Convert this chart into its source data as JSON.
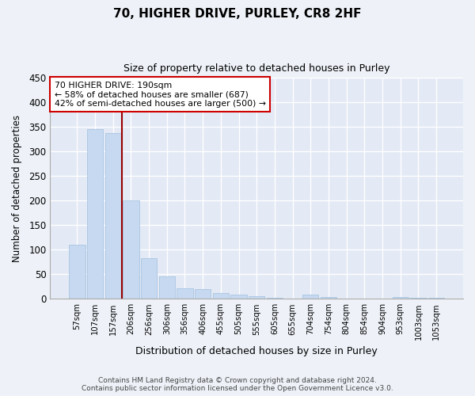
{
  "title_line1": "70, HIGHER DRIVE, PURLEY, CR8 2HF",
  "title_line2": "Size of property relative to detached houses in Purley",
  "xlabel": "Distribution of detached houses by size in Purley",
  "ylabel": "Number of detached properties",
  "categories": [
    "57sqm",
    "107sqm",
    "157sqm",
    "206sqm",
    "256sqm",
    "306sqm",
    "356sqm",
    "406sqm",
    "455sqm",
    "505sqm",
    "555sqm",
    "605sqm",
    "655sqm",
    "704sqm",
    "754sqm",
    "804sqm",
    "854sqm",
    "904sqm",
    "953sqm",
    "1003sqm",
    "1053sqm"
  ],
  "values": [
    110,
    345,
    338,
    200,
    83,
    46,
    22,
    20,
    11,
    8,
    6,
    2,
    0,
    8,
    4,
    0,
    0,
    0,
    3,
    2,
    2
  ],
  "bar_color": "#c6d9f0",
  "bar_edge_color": "#9fbfdf",
  "vline_x": 2.5,
  "vline_color": "#990000",
  "annotation_text": "70 HIGHER DRIVE: 190sqm\n← 58% of detached houses are smaller (687)\n42% of semi-detached houses are larger (500) →",
  "annotation_box_color": "#ffffff",
  "annotation_box_edge": "#cc0000",
  "ylim": [
    0,
    450
  ],
  "yticks": [
    0,
    50,
    100,
    150,
    200,
    250,
    300,
    350,
    400,
    450
  ],
  "footer_line1": "Contains HM Land Registry data © Crown copyright and database right 2024.",
  "footer_line2": "Contains public sector information licensed under the Open Government Licence v3.0.",
  "bg_color": "#eef2f8",
  "plot_bg_color": "#e4eaf5"
}
